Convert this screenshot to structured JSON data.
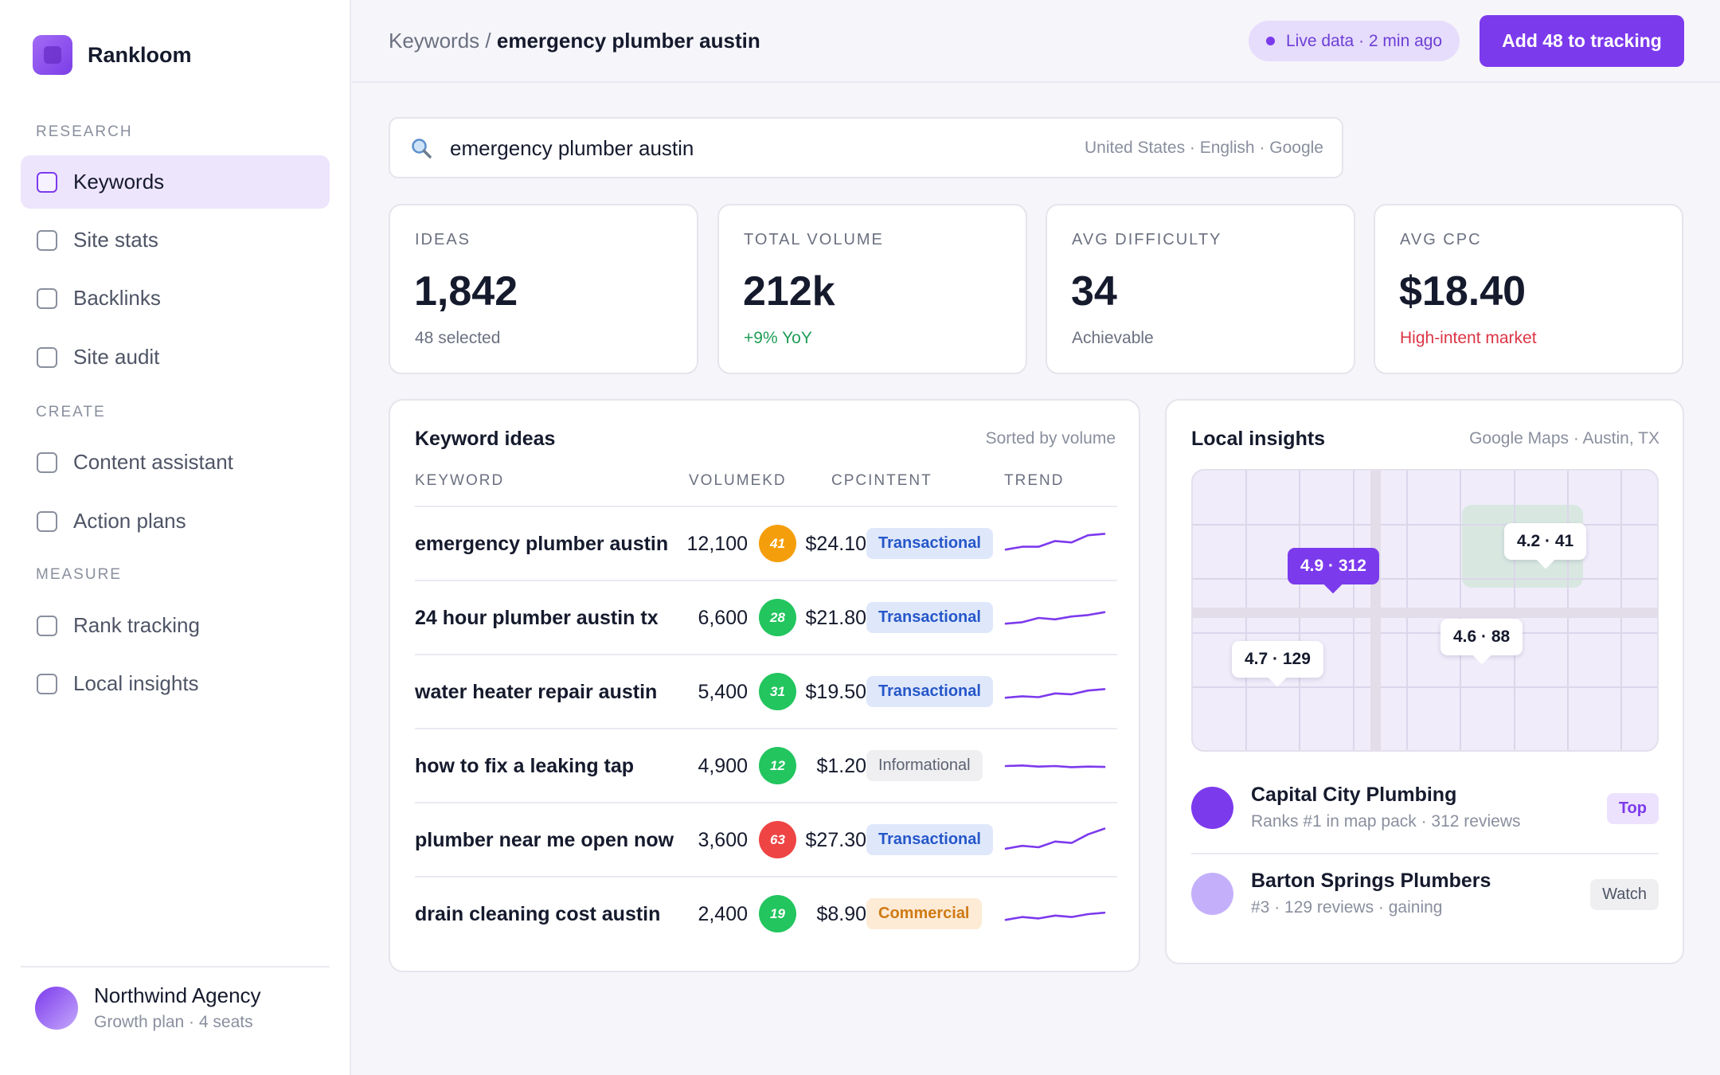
{
  "brand": {
    "name": "Rankloom",
    "accent": "#7c3aed"
  },
  "sidebar": {
    "sections": [
      {
        "label": "RESEARCH",
        "items": [
          {
            "label": "Keywords",
            "active": true
          },
          {
            "label": "Site stats"
          },
          {
            "label": "Backlinks"
          },
          {
            "label": "Site audit"
          }
        ]
      },
      {
        "label": "CREATE",
        "items": [
          {
            "label": "Content assistant"
          },
          {
            "label": "Action plans"
          }
        ]
      },
      {
        "label": "MEASURE",
        "items": [
          {
            "label": "Rank tracking"
          },
          {
            "label": "Local insights"
          }
        ]
      }
    ],
    "account": {
      "name": "Northwind Agency",
      "plan": "Growth plan · 4 seats"
    }
  },
  "header": {
    "breadcrumb_root": "Keywords",
    "breadcrumb_sep": "/",
    "breadcrumb_current": "emergency plumber austin",
    "live_status": "Live data · 2 min ago",
    "add_button": "Add 48 to tracking"
  },
  "search": {
    "query": "emergency plumber austin",
    "meta": "United States · English · Google",
    "icon": "search-icon"
  },
  "stats": [
    {
      "label": "IDEAS",
      "value": "1,842",
      "sub": "48 selected",
      "tone": "neutral"
    },
    {
      "label": "TOTAL VOLUME",
      "value": "212k",
      "sub": "+9% YoY",
      "tone": "green"
    },
    {
      "label": "AVG DIFFICULTY",
      "value": "34",
      "sub": "Achievable",
      "tone": "neutral"
    },
    {
      "label": "AVG CPC",
      "value": "$18.40",
      "sub": "High-intent market",
      "tone": "red"
    }
  ],
  "keyword_ideas": {
    "title": "Keyword ideas",
    "sort_note": "Sorted by volume",
    "columns": {
      "keyword": "KEYWORD",
      "volume_kd": "VOLUMEKD",
      "cpc_intent": "CPCINTENT",
      "trend": "TREND"
    },
    "rows": [
      {
        "keyword": "emergency plumber austin",
        "volume": "12,100",
        "kd": "41",
        "kd_color": "#f59e0b",
        "cpc": "$24.10",
        "intent": "Transactional",
        "intent_type": "transactional",
        "trend": [
          3,
          4,
          4,
          6,
          5.5,
          8,
          8.5
        ]
      },
      {
        "keyword": "24 hour plumber austin tx",
        "volume": "6,600",
        "kd": "28",
        "kd_color": "#22c55e",
        "cpc": "$21.80",
        "intent": "Transactional",
        "intent_type": "transactional",
        "trend": [
          3,
          3.5,
          5,
          4.5,
          5.5,
          6,
          7
        ]
      },
      {
        "keyword": "water heater repair austin",
        "volume": "5,400",
        "kd": "31",
        "kd_color": "#22c55e",
        "cpc": "$19.50",
        "intent": "Transactional",
        "intent_type": "transactional",
        "trend": [
          3,
          3.5,
          3.2,
          4.5,
          4.2,
          5.5,
          6
        ]
      },
      {
        "keyword": "how to fix a leaking tap",
        "volume": "4,900",
        "kd": "12",
        "kd_color": "#22c55e",
        "cpc": "$1.20",
        "intent": "Informational",
        "intent_type": "informational",
        "trend": [
          5,
          5.2,
          4.8,
          5,
          4.6,
          4.8,
          4.7
        ]
      },
      {
        "keyword": "plumber near me open now",
        "volume": "3,600",
        "kd": "63",
        "kd_color": "#ef4444",
        "cpc": "$27.30",
        "intent": "Transactional",
        "intent_type": "transactional",
        "trend": [
          2,
          3,
          2.5,
          4.5,
          4,
          7,
          9
        ]
      },
      {
        "keyword": "drain cleaning cost austin",
        "volume": "2,400",
        "kd": "19",
        "kd_color": "#22c55e",
        "cpc": "$8.90",
        "intent": "Commercial",
        "intent_type": "commercial",
        "trend": [
          3,
          4,
          3.5,
          4.5,
          4,
          5,
          5.5
        ]
      }
    ]
  },
  "local_insights": {
    "title": "Local insights",
    "meta": "Google Maps · Austin, TX",
    "pins": [
      "4.9 · 312",
      "4.2 · 41",
      "4.6 · 88",
      "4.7 · 129"
    ],
    "businesses": [
      {
        "name": "Capital City Plumbing",
        "sub": "Ranks #1 in map pack · 312 reviews",
        "tag": "Top",
        "dot_color": "#7c3aed"
      },
      {
        "name": "Barton Springs Plumbers",
        "sub": "#3 · 129 reviews · gaining",
        "tag": "Watch",
        "dot_color": "#c4b0fa"
      }
    ]
  }
}
